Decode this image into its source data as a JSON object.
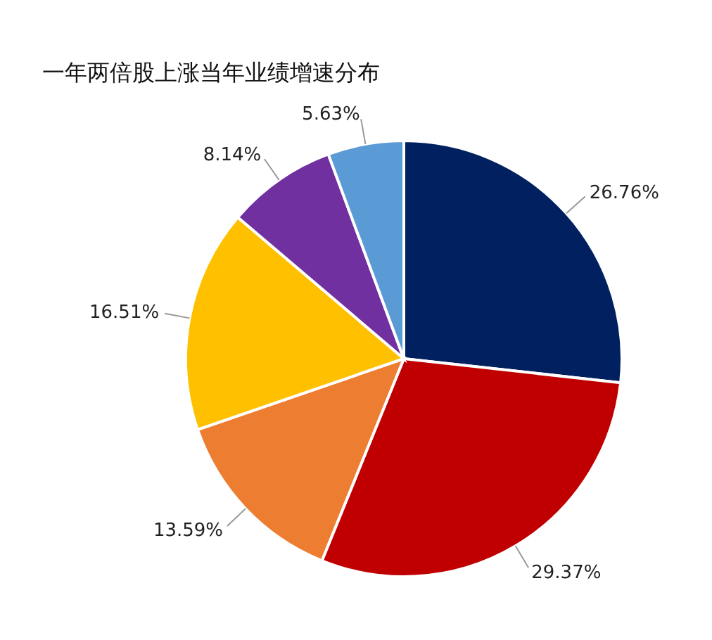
{
  "chart_data": {
    "type": "pie",
    "title": "一年两倍股上涨当年业绩增速分布",
    "categories": [
      null,
      null,
      null,
      null,
      null,
      null
    ],
    "values": [
      26.76,
      29.37,
      13.59,
      16.51,
      8.14,
      5.63
    ],
    "colors": [
      "#002060",
      "#c00000",
      "#ed7d31",
      "#ffc000",
      "#7030a0",
      "#5b9bd5"
    ],
    "value_labels": [
      "26.76%",
      "29.37%",
      "13.59%",
      "16.51%",
      "8.14%",
      "5.63%"
    ]
  }
}
